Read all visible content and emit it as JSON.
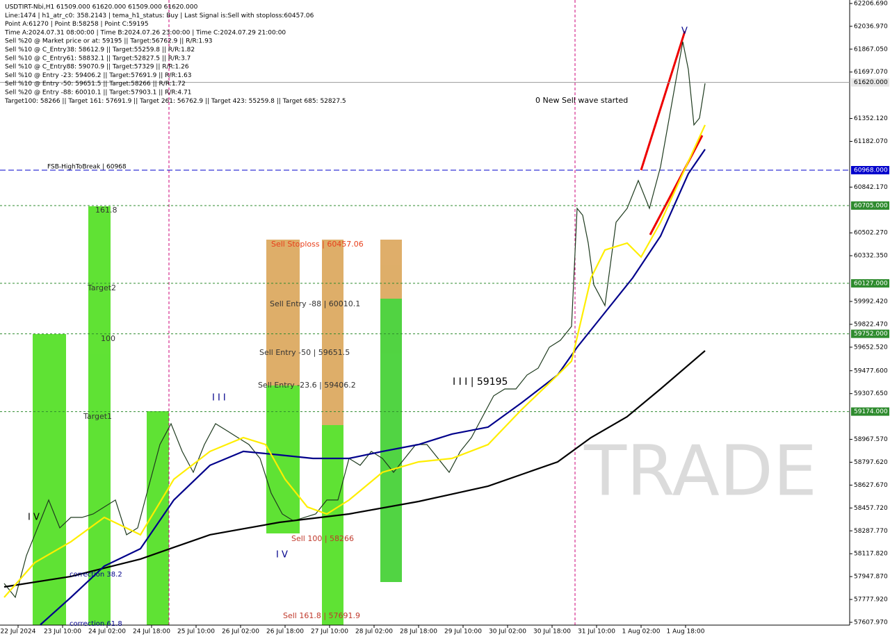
{
  "chart_data": {
    "type": "line",
    "info_lines": [
      "USDTIRT-Nbi,H1  61509.000 61620.000 61509.000 61620.000",
      "Line:1474 | h1_atr_c0: 358.2143 | tema_h1_status: Buy | Last Signal is:Sell with stoploss:60457.06",
      "Point A:61270 | Point B:58258 | Point C:59195",
      "Time A:2024.07.31 08:00:00 | Time B:2024.07.26 23:00:00 | Time C:2024.07.29 21:00:00",
      "Sell %20 @ Market price or at: 59195 || Target:56762.9 || R/R:1.93",
      "Sell %10 @ C_Entry38: 58612.9 || Target:55259.8 || R/R:1.82",
      "Sell %10 @ C_Entry61: 58832.1 || Target:52827.5 || R/R:3.7",
      "Sell %10 @ C_Entry88: 59070.9 || Target:57329 || R/R:1.26",
      "Sell %10 @ Entry -23: 59406.2 || Target:57691.9 || R/R:1.63",
      "Sell %10 @ Entry -50: 59651.5 || Target:58266 || R/R:1.72",
      "Sell %20 @ Entry -88: 60010.1 || Target:57903.1 || R/R:4.71",
      "Target100: 58266 || Target 161: 57691.9 || Target 261: 56762.9 || Target 423: 55259.8 || Target 685: 52827.5"
    ],
    "annotations": [
      "FSB-HighToBreak | 60968",
      "0 New Sell wave started",
      "Sell Stoploss | 60457.06",
      "Sell Entry -88 | 60010.1",
      "Sell Entry -50 | 59651.5",
      "Sell Entry -23.6 | 59406.2",
      "I I I | 59195",
      "Sell 100 | 58266",
      "Sell 161.8 | 57691.9",
      "161.8",
      "Target2",
      "100",
      "Target1",
      "correction 38.2",
      "correction 61.8",
      "I V",
      "I I I",
      "I V",
      "V"
    ],
    "watermark": "TRADE",
    "x": [
      -5,
      -1,
      3,
      7,
      11,
      15,
      19,
      23,
      27,
      31,
      35,
      39,
      43,
      47,
      51,
      55,
      59,
      63,
      67,
      71,
      75,
      79,
      83,
      87,
      91,
      95,
      99,
      103,
      107,
      111,
      115,
      119,
      123,
      127,
      131,
      135,
      139,
      143,
      147,
      151,
      155,
      159,
      163,
      167,
      171,
      175,
      179,
      183,
      187,
      191,
      195,
      199,
      201,
      203,
      205,
      207,
      211,
      215,
      219,
      223,
      227,
      231,
      235,
      239,
      241,
      243,
      245,
      247
    ],
    "xlim": [
      -6.5,
      299
    ],
    "xticks": [
      {
        "value": 0,
        "label": "22 Jul 2024"
      },
      {
        "value": 16,
        "label": "23 Jul 10:00"
      },
      {
        "value": 32,
        "label": "24 Jul 02:00"
      },
      {
        "value": 48,
        "label": "24 Jul 18:00"
      },
      {
        "value": 64,
        "label": "25 Jul 10:00"
      },
      {
        "value": 80,
        "label": "26 Jul 02:00"
      },
      {
        "value": 96,
        "label": "26 Jul 18:00"
      },
      {
        "value": 112,
        "label": "27 Jul 10:00"
      },
      {
        "value": 128,
        "label": "28 Jul 02:00"
      },
      {
        "value": 144,
        "label": "28 Jul 18:00"
      },
      {
        "value": 160,
        "label": "29 Jul 10:00"
      },
      {
        "value": 176,
        "label": "30 Jul 02:00"
      },
      {
        "value": 192,
        "label": "30 Jul 18:00"
      },
      {
        "value": 208,
        "label": "31 Jul 10:00"
      },
      {
        "value": 224,
        "label": "1 Aug 02:00"
      },
      {
        "value": 240,
        "label": "1 Aug 18:00"
      }
    ],
    "ylim": [
      57587.3,
      62232.5
    ],
    "yticks": [
      {
        "value": 62206.69,
        "label": "62206.690"
      },
      {
        "value": 62036.97,
        "label": "62036.970"
      },
      {
        "value": 61867.05,
        "label": "61867.050"
      },
      {
        "value": 61697.07,
        "label": "61697.070"
      },
      {
        "value": 61352.12,
        "label": "61352.120"
      },
      {
        "value": 61182.07,
        "label": "61182.070"
      },
      {
        "value": 60842.17,
        "label": "60842.170"
      },
      {
        "value": 60502.27,
        "label": "60502.270"
      },
      {
        "value": 60332.35,
        "label": "60332.350"
      },
      {
        "value": 59992.42,
        "label": "59992.420"
      },
      {
        "value": 59822.47,
        "label": "59822.470"
      },
      {
        "value": 59652.52,
        "label": "59652.520"
      },
      {
        "value": 59477.6,
        "label": "59477.600"
      },
      {
        "value": 59307.65,
        "label": "59307.650"
      },
      {
        "value": 58967.57,
        "label": "58967.570"
      },
      {
        "value": 58797.62,
        "label": "58797.620"
      },
      {
        "value": 58627.67,
        "label": "58627.670"
      },
      {
        "value": 58457.72,
        "label": "58457.720"
      },
      {
        "value": 58287.77,
        "label": "58287.770"
      },
      {
        "value": 58117.82,
        "label": "58117.820"
      },
      {
        "value": 57947.87,
        "label": "57947.870"
      },
      {
        "value": 57777.92,
        "label": "57777.920"
      },
      {
        "value": 57607.97,
        "label": "57607.970"
      }
    ],
    "levels": [
      {
        "value": 61620,
        "label": "61620.000",
        "color": "#9a9a9a"
      },
      {
        "value": 60968,
        "label": "60968.000",
        "color": "#0000cc"
      },
      {
        "value": 60705,
        "label": "60705.000",
        "color": "#2e8b2e"
      },
      {
        "value": 60127,
        "label": "60127.000",
        "color": "#2e8b2e"
      },
      {
        "value": 59752,
        "label": "59752.000",
        "color": "#2e8b2e"
      },
      {
        "value": 59174,
        "label": "59174.000",
        "color": "#2e8b2e"
      }
    ],
    "series": [
      {
        "color": "#1e3a1e",
        "values": [
          57897,
          57794,
          58104,
          58310,
          58517,
          58310,
          58388,
          58388,
          58413,
          58465,
          58517,
          58259,
          58310,
          58620,
          58929,
          59084,
          58878,
          58723,
          58929,
          59084,
          59033,
          58981,
          58929,
          58826,
          58568,
          58413,
          58362,
          58388,
          58413,
          58517,
          58517,
          58826,
          58775,
          58878,
          58826,
          58723,
          58826,
          58929,
          58929,
          58826,
          58723,
          58878,
          58981,
          59136,
          59291,
          59342,
          59342,
          59446,
          59497,
          59652,
          59704,
          59807,
          60684,
          60633,
          60426,
          60117,
          59962,
          60581,
          60684,
          60891,
          60684,
          60994,
          61458,
          61923,
          61716,
          61304,
          61355,
          61613
        ]
      },
      {
        "color": "#000000",
        "x": [
          -5,
          19,
          44,
          69,
          94,
          119,
          144,
          169,
          194,
          206,
          219,
          231,
          247
        ],
        "values": [
          57871,
          57949,
          58078,
          58259,
          58351,
          58413,
          58506,
          58620,
          58800,
          58981,
          59136,
          59342,
          59626
        ]
      },
      {
        "color": "#00008b",
        "x": [
          8,
          19,
          31,
          44,
          56,
          69,
          81,
          94,
          106,
          119,
          131,
          144,
          156,
          169,
          181,
          194,
          201,
          211,
          221,
          231,
          241,
          247
        ],
        "values": [
          57590,
          57794,
          58026,
          58155,
          58517,
          58775,
          58878,
          58852,
          58826,
          58826,
          58878,
          58929,
          59007,
          59059,
          59239,
          59446,
          59652,
          59910,
          60168,
          60478,
          60942,
          61123
        ]
      },
      {
        "color": "#ffee00",
        "x": [
          -5,
          6,
          19,
          31,
          44,
          56,
          69,
          81,
          89,
          96,
          104,
          111,
          119,
          131,
          144,
          156,
          169,
          181,
          194,
          199,
          206,
          211,
          219,
          224,
          231,
          239,
          247
        ],
        "values": [
          57794,
          58052,
          58207,
          58388,
          58259,
          58671,
          58878,
          58981,
          58929,
          58671,
          58465,
          58413,
          58517,
          58723,
          58800,
          58826,
          58929,
          59188,
          59446,
          59549,
          60168,
          60375,
          60426,
          60323,
          60581,
          60942,
          61304
        ]
      }
    ]
  }
}
